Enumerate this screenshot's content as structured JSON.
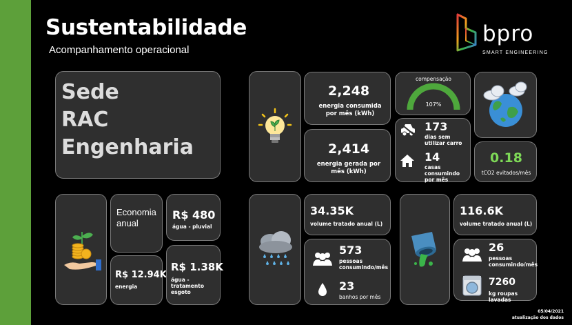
{
  "header": {
    "title": "Sustentabilidade",
    "subtitle": "Acompanhamento operacional"
  },
  "logo": {
    "name": "bpro",
    "tagline": "SMART ENGINEERING"
  },
  "site": {
    "line1": "Sede",
    "line2": "RAC",
    "line3": "Engenharia"
  },
  "energy": {
    "consumed_value": "2,248",
    "consumed_label": "energia consumida por mês (kWh)",
    "generated_value": "2,414",
    "generated_label": "energia gerada por mês (kWh)",
    "compensation_title": "compensação",
    "compensation_value": "107%",
    "compensation_fraction": 1.0,
    "days_value": "173",
    "days_label": "dias sem utilizar carro",
    "houses_value": "14",
    "houses_label": "casas consumindo por mês",
    "co2_value": "0.18",
    "co2_label": "tCO2 evitados/mês"
  },
  "economy": {
    "title": "Economia anual",
    "rain_value": "R$ 480",
    "rain_label": "água - pluvial",
    "energy_value": "R$ 12.94K",
    "energy_label": "energia",
    "sewage_value": "R$ 1.38K",
    "sewage_label": "água - tratamento esgoto"
  },
  "rainwater": {
    "volume_value": "34.35K",
    "volume_label": "volume tratado anual (L)",
    "people_value": "573",
    "people_label": "pessoas consumindo/mês",
    "baths_value": "23",
    "baths_label": "banhos por mês"
  },
  "sewage": {
    "volume_value": "116.6K",
    "volume_label": "volume tratado anual (L)",
    "people_value": "26",
    "people_label": "pessoas consumindo/mês",
    "laundry_value": "7260",
    "laundry_label": "kg roupas lavadas"
  },
  "footer": {
    "date": "05/04/2021",
    "date_label": "atualização dos dados"
  },
  "colors": {
    "accent_green": "#5da03a",
    "gauge_green": "#4ea83c",
    "co2_green": "#7ed957",
    "card_bg": "#2f2f2f",
    "card_border": "#7a7a7a"
  }
}
